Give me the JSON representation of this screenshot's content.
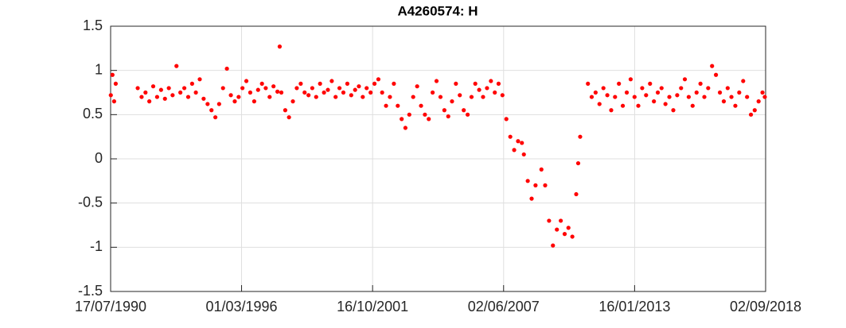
{
  "chart_data": {
    "type": "scatter",
    "title": "A4260574: H",
    "color": "#ff0000",
    "grid": true,
    "xlim": [
      "1990-07-17",
      "2018-09-02"
    ],
    "xticks": [
      {
        "value": "1990-07-17",
        "label": "17/07/1990"
      },
      {
        "value": "1996-03-01",
        "label": "01/03/1996"
      },
      {
        "value": "2001-10-16",
        "label": "16/10/2001"
      },
      {
        "value": "2007-06-02",
        "label": "02/06/2007"
      },
      {
        "value": "2013-01-16",
        "label": "16/01/2013"
      },
      {
        "value": "2018-09-02",
        "label": "02/09/2018"
      }
    ],
    "ylim": [
      -1.5,
      1.5
    ],
    "yticks": [
      -1.5,
      -1,
      -0.5,
      0,
      0.5,
      1,
      1.5
    ],
    "x": [
      "1990-07-20",
      "1990-08-15",
      "1990-09-10",
      "1990-10-05",
      "1991-09-15",
      "1991-11-15",
      "1992-01-15",
      "1992-03-15",
      "1992-05-15",
      "1992-07-15",
      "1992-09-15",
      "1992-11-15",
      "1993-01-15",
      "1993-03-15",
      "1993-05-15",
      "1993-07-15",
      "1993-09-15",
      "1993-11-15",
      "1994-01-15",
      "1994-03-15",
      "1994-05-15",
      "1994-07-15",
      "1994-09-15",
      "1994-11-15",
      "1995-01-15",
      "1995-03-15",
      "1995-05-15",
      "1995-07-15",
      "1995-09-15",
      "1995-11-15",
      "1996-01-15",
      "1996-03-15",
      "1996-05-15",
      "1996-07-15",
      "1996-09-15",
      "1996-11-15",
      "1997-01-15",
      "1997-03-15",
      "1997-05-15",
      "1997-07-15",
      "1997-09-15",
      "1997-10-20",
      "1997-11-15",
      "1998-01-15",
      "1998-03-15",
      "1998-05-15",
      "1998-07-15",
      "1998-09-15",
      "1998-11-15",
      "1999-01-15",
      "1999-03-15",
      "1999-05-15",
      "1999-07-15",
      "1999-09-15",
      "1999-11-15",
      "2000-01-15",
      "2000-03-15",
      "2000-05-15",
      "2000-07-15",
      "2000-09-15",
      "2000-11-15",
      "2001-01-15",
      "2001-03-15",
      "2001-05-15",
      "2001-07-15",
      "2001-09-15",
      "2001-11-15",
      "2002-01-15",
      "2002-03-15",
      "2002-05-15",
      "2002-07-15",
      "2002-09-15",
      "2002-11-15",
      "2003-01-15",
      "2003-03-15",
      "2003-05-15",
      "2003-07-15",
      "2003-09-15",
      "2003-11-15",
      "2004-01-15",
      "2004-03-15",
      "2004-05-15",
      "2004-07-15",
      "2004-09-15",
      "2004-11-15",
      "2005-01-15",
      "2005-03-15",
      "2005-05-15",
      "2005-07-15",
      "2005-09-15",
      "2005-11-15",
      "2006-01-15",
      "2006-03-15",
      "2006-05-15",
      "2006-07-15",
      "2006-09-15",
      "2006-11-15",
      "2007-01-15",
      "2007-03-15",
      "2007-05-15",
      "2007-07-15",
      "2007-09-15",
      "2007-11-15",
      "2008-01-15",
      "2008-03-15",
      "2008-04-15",
      "2008-06-15",
      "2008-08-15",
      "2008-10-15",
      "2009-01-15",
      "2009-03-15",
      "2009-05-15",
      "2009-07-15",
      "2009-09-15",
      "2009-11-15",
      "2010-01-15",
      "2010-03-15",
      "2010-05-15",
      "2010-07-15",
      "2010-08-15",
      "2010-09-15",
      "2011-01-15",
      "2011-03-15",
      "2011-05-15",
      "2011-07-15",
      "2011-09-15",
      "2011-11-15",
      "2012-01-15",
      "2012-03-15",
      "2012-05-15",
      "2012-07-15",
      "2012-09-15",
      "2012-11-15",
      "2013-01-15",
      "2013-03-15",
      "2013-05-15",
      "2013-07-15",
      "2013-09-15",
      "2013-11-15",
      "2014-01-15",
      "2014-03-15",
      "2014-05-15",
      "2014-07-15",
      "2014-09-15",
      "2014-11-15",
      "2015-01-15",
      "2015-03-15",
      "2015-05-15",
      "2015-07-15",
      "2015-09-15",
      "2015-11-15",
      "2016-01-15",
      "2016-03-15",
      "2016-05-15",
      "2016-07-15",
      "2016-09-15",
      "2016-11-15",
      "2017-01-15",
      "2017-03-15",
      "2017-05-15",
      "2017-07-15",
      "2017-09-15",
      "2017-11-15",
      "2018-01-15",
      "2018-03-15",
      "2018-05-15",
      "2018-07-15",
      "2018-08-20"
    ],
    "values": [
      0.72,
      0.95,
      0.65,
      0.85,
      0.8,
      0.7,
      0.75,
      0.65,
      0.82,
      0.7,
      0.78,
      0.68,
      0.8,
      0.72,
      1.05,
      0.75,
      0.8,
      0.7,
      0.85,
      0.75,
      0.9,
      0.68,
      0.62,
      0.55,
      0.47,
      0.62,
      0.8,
      1.02,
      0.72,
      0.65,
      0.7,
      0.8,
      0.88,
      0.75,
      0.65,
      0.78,
      0.85,
      0.8,
      0.7,
      0.82,
      0.76,
      1.27,
      0.75,
      0.55,
      0.47,
      0.65,
      0.8,
      0.85,
      0.75,
      0.72,
      0.8,
      0.7,
      0.85,
      0.75,
      0.78,
      0.88,
      0.7,
      0.8,
      0.75,
      0.85,
      0.72,
      0.78,
      0.82,
      0.7,
      0.8,
      0.75,
      0.85,
      0.9,
      0.75,
      0.6,
      0.7,
      0.85,
      0.6,
      0.45,
      0.35,
      0.5,
      0.7,
      0.82,
      0.6,
      0.5,
      0.45,
      0.75,
      0.88,
      0.7,
      0.55,
      0.48,
      0.65,
      0.85,
      0.72,
      0.55,
      0.5,
      0.7,
      0.85,
      0.78,
      0.7,
      0.8,
      0.88,
      0.75,
      0.85,
      0.72,
      0.45,
      0.25,
      0.1,
      0.2,
      0.18,
      0.05,
      -0.25,
      -0.45,
      -0.3,
      -0.12,
      -0.3,
      -0.7,
      -0.98,
      -0.8,
      -0.7,
      -0.85,
      -0.78,
      -0.88,
      -0.4,
      -0.05,
      0.25,
      0.85,
      0.7,
      0.75,
      0.62,
      0.8,
      0.72,
      0.55,
      0.7,
      0.85,
      0.6,
      0.75,
      0.9,
      0.7,
      0.6,
      0.8,
      0.72,
      0.85,
      0.65,
      0.75,
      0.8,
      0.62,
      0.7,
      0.55,
      0.72,
      0.8,
      0.9,
      0.7,
      0.6,
      0.75,
      0.85,
      0.7,
      0.8,
      1.05,
      0.95,
      0.75,
      0.65,
      0.8,
      0.7,
      0.6,
      0.75,
      0.88,
      0.7,
      0.5,
      0.55,
      0.65,
      0.75,
      0.7
    ]
  }
}
